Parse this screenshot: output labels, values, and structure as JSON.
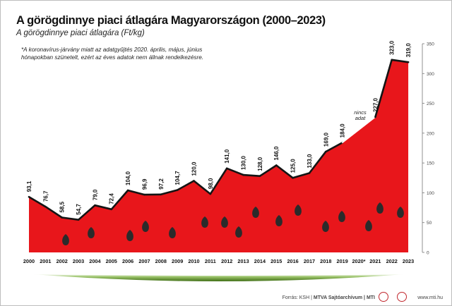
{
  "title": "A görögdinnye piaci átlagára Magyarországon (2000–2023)",
  "subtitle": "A görögdinnye piaci átlagára (Ft/kg)",
  "note": "*A koronavírus-járvány miatt az adatgyűjtés 2020. április, május, június hónapokban szünetelt, ezért az éves adatok nem állnak rendelkezésre.",
  "footer": {
    "source_prefix": "Forrás: KSH | ",
    "source_bold": "MTVA Sajtóarchívum | MTI",
    "url": "www.mti.hu"
  },
  "colors": {
    "area": "#e8161b",
    "line": "#141414",
    "seed": "#2b2b2b",
    "rind": "#4d7a1e"
  },
  "chart_data": {
    "type": "area",
    "categories": [
      "2000",
      "2001",
      "2002",
      "2003",
      "2004",
      "2005",
      "2006",
      "2007",
      "2008",
      "2009",
      "2010",
      "2011",
      "2012",
      "2013",
      "2014",
      "2015",
      "2016",
      "2017",
      "2018",
      "2019",
      "2020*",
      "2021",
      "2022",
      "2023"
    ],
    "series": [
      {
        "values": [
          93.1,
          76.7,
          58.5,
          54.7,
          79.0,
          72.4,
          104.0,
          96.9,
          97.2,
          104.7,
          120.0,
          98.0,
          141.0,
          130.0,
          128.0,
          146.0,
          125.0,
          133.0,
          169.0,
          184.0,
          null,
          227.0,
          323.0,
          319.0
        ],
        "labels": [
          "93,1",
          "76,7",
          "58,5",
          "54,7",
          "79,0",
          "72,4",
          "104,0",
          "96,9",
          "97,2",
          "104,7",
          "120,0",
          "98,0",
          "141,0",
          "130,0",
          "128,0",
          "146,0",
          "125,0",
          "133,0",
          "169,0",
          "184,0",
          "",
          "227,0",
          "323,0",
          "319,0"
        ]
      }
    ],
    "missing_annotation": {
      "category": "2020*",
      "text_line1": "nincs",
      "text_line2": "adat"
    },
    "y_ticks": [
      0,
      50,
      100,
      150,
      200,
      250,
      300,
      350
    ],
    "y_tick_labels": [
      "0",
      "50",
      "100",
      "150",
      "200",
      "250",
      "300",
      "350"
    ],
    "ylim": [
      0,
      350
    ],
    "y_axis_position": "right",
    "grid": false,
    "legend": "none",
    "title": "A görögdinnye piaci átlagára Magyarországon (2000–2023)",
    "ylabel": "",
    "xlabel": ""
  }
}
